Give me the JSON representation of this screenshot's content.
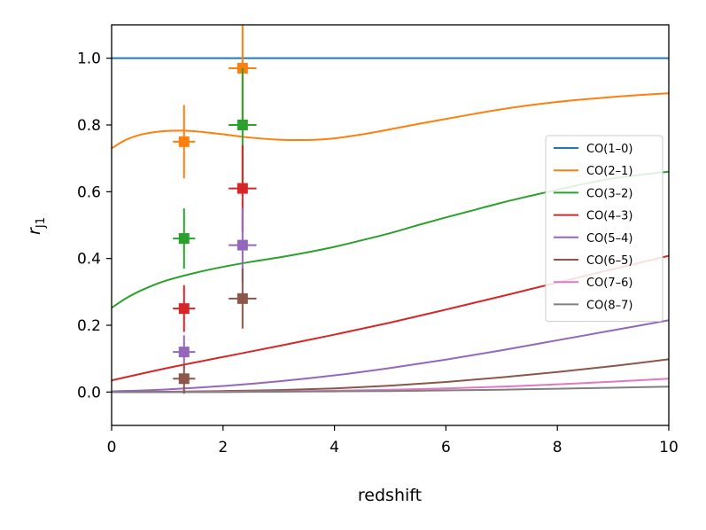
{
  "chart_data": {
    "type": "line",
    "xlabel": "redshift",
    "ylabel": "r",
    "ylabel_sub": "J1",
    "xlim": [
      0,
      10
    ],
    "ylim": [
      -0.1,
      1.1
    ],
    "xticks": [
      0,
      2,
      4,
      6,
      8,
      10
    ],
    "xtick_labels": [
      "0",
      "2",
      "4",
      "6",
      "8",
      "10"
    ],
    "yticks": [
      0.0,
      0.2,
      0.4,
      0.6,
      0.8,
      1.0
    ],
    "ytick_labels": [
      "0.0",
      "0.2",
      "0.4",
      "0.6",
      "0.8",
      "1.0"
    ],
    "grid": false,
    "legend_position": "center-right",
    "series": [
      {
        "name": "CO(1–0)",
        "color": "#1f77b4",
        "x": [
          0,
          1,
          2,
          3,
          4,
          5,
          6,
          7,
          8,
          9,
          10
        ],
        "y": [
          1.0,
          1.0,
          1.0,
          1.0,
          1.0,
          1.0,
          1.0,
          1.0,
          1.0,
          1.0,
          1.0
        ]
      },
      {
        "name": "CO(2–1)",
        "color": "#ff7f0e",
        "x": [
          0,
          0.25,
          0.5,
          0.75,
          1.0,
          1.25,
          1.5,
          2.0,
          2.5,
          3.0,
          3.5,
          4.0,
          4.5,
          5.0,
          5.5,
          6.0,
          6.5,
          7.0,
          7.5,
          8.0,
          8.5,
          9.0,
          9.5,
          10.0
        ],
        "y": [
          0.73,
          0.755,
          0.77,
          0.778,
          0.782,
          0.783,
          0.781,
          0.772,
          0.762,
          0.756,
          0.755,
          0.76,
          0.772,
          0.787,
          0.803,
          0.818,
          0.833,
          0.847,
          0.859,
          0.869,
          0.877,
          0.884,
          0.89,
          0.895
        ]
      },
      {
        "name": "CO(3–2)",
        "color": "#2ca02c",
        "x": [
          0,
          0.25,
          0.5,
          0.75,
          1.0,
          1.5,
          2.0,
          2.5,
          3.0,
          3.5,
          4.0,
          4.5,
          5.0,
          5.5,
          6.0,
          6.5,
          7.0,
          7.5,
          8.0,
          8.5,
          9.0,
          9.5,
          10.0
        ],
        "y": [
          0.252,
          0.28,
          0.302,
          0.32,
          0.335,
          0.357,
          0.375,
          0.39,
          0.403,
          0.418,
          0.435,
          0.455,
          0.476,
          0.5,
          0.523,
          0.545,
          0.567,
          0.587,
          0.606,
          0.624,
          0.64,
          0.651,
          0.66
        ]
      },
      {
        "name": "CO(4–3)",
        "color": "#d62728",
        "x": [
          0,
          1,
          2,
          3,
          4,
          5,
          6,
          7,
          8,
          9,
          10
        ],
        "y": [
          0.035,
          0.072,
          0.105,
          0.138,
          0.172,
          0.208,
          0.247,
          0.287,
          0.328,
          0.368,
          0.408
        ]
      },
      {
        "name": "CO(5–4)",
        "color": "#9467bd",
        "x": [
          0,
          1,
          2,
          3,
          4,
          5,
          6,
          7,
          8,
          9,
          10
        ],
        "y": [
          0.002,
          0.008,
          0.018,
          0.032,
          0.05,
          0.072,
          0.097,
          0.125,
          0.155,
          0.185,
          0.215
        ]
      },
      {
        "name": "CO(6–5)",
        "color": "#8c564b",
        "x": [
          0,
          1,
          2,
          3,
          4,
          5,
          6,
          7,
          8,
          9,
          10
        ],
        "y": [
          0.0,
          0.001,
          0.003,
          0.006,
          0.011,
          0.019,
          0.03,
          0.044,
          0.06,
          0.078,
          0.098
        ]
      },
      {
        "name": "CO(7–6)",
        "color": "#e377c2",
        "x": [
          0,
          1,
          2,
          3,
          4,
          5,
          6,
          7,
          8,
          9,
          10
        ],
        "y": [
          0.0,
          0.0,
          0.001,
          0.002,
          0.004,
          0.007,
          0.011,
          0.016,
          0.023,
          0.031,
          0.04
        ]
      },
      {
        "name": "CO(8–7)",
        "color": "#7f7f7f",
        "x": [
          0,
          1,
          2,
          3,
          4,
          5,
          6,
          7,
          8,
          9,
          10
        ],
        "y": [
          0.0,
          0.0,
          0.0,
          0.001,
          0.002,
          0.003,
          0.005,
          0.007,
          0.01,
          0.013,
          0.016
        ]
      }
    ],
    "points": [
      {
        "series": "CO(2–1)",
        "color": "#ff7f0e",
        "x": 1.3,
        "y": 0.75,
        "xerr": 0.2,
        "yerr": 0.11
      },
      {
        "series": "CO(3–2)",
        "color": "#2ca02c",
        "x": 1.3,
        "y": 0.46,
        "xerr": 0.2,
        "yerr": 0.09
      },
      {
        "series": "CO(4–3)",
        "color": "#d62728",
        "x": 1.3,
        "y": 0.25,
        "xerr": 0.2,
        "yerr": 0.07
      },
      {
        "series": "CO(5–4)",
        "color": "#9467bd",
        "x": 1.3,
        "y": 0.12,
        "xerr": 0.2,
        "yerr": 0.05
      },
      {
        "series": "CO(6–5)",
        "color": "#8c564b",
        "x": 1.3,
        "y": 0.04,
        "xerr": 0.2,
        "yerr": 0.045
      },
      {
        "series": "CO(2–1)",
        "color": "#ff7f0e",
        "x": 2.35,
        "y": 0.97,
        "xerr": 0.25,
        "yerr": 0.16
      },
      {
        "series": "CO(3–2)",
        "color": "#2ca02c",
        "x": 2.35,
        "y": 0.8,
        "xerr": 0.25,
        "yerr": 0.17
      },
      {
        "series": "CO(4–3)",
        "color": "#d62728",
        "x": 2.35,
        "y": 0.61,
        "xerr": 0.25,
        "yerr": 0.13
      },
      {
        "series": "CO(5–4)",
        "color": "#9467bd",
        "x": 2.35,
        "y": 0.44,
        "xerr": 0.25,
        "yerr": 0.11
      },
      {
        "series": "CO(6–5)",
        "color": "#8c564b",
        "x": 2.35,
        "y": 0.28,
        "xerr": 0.25,
        "yerr": 0.09
      }
    ]
  }
}
